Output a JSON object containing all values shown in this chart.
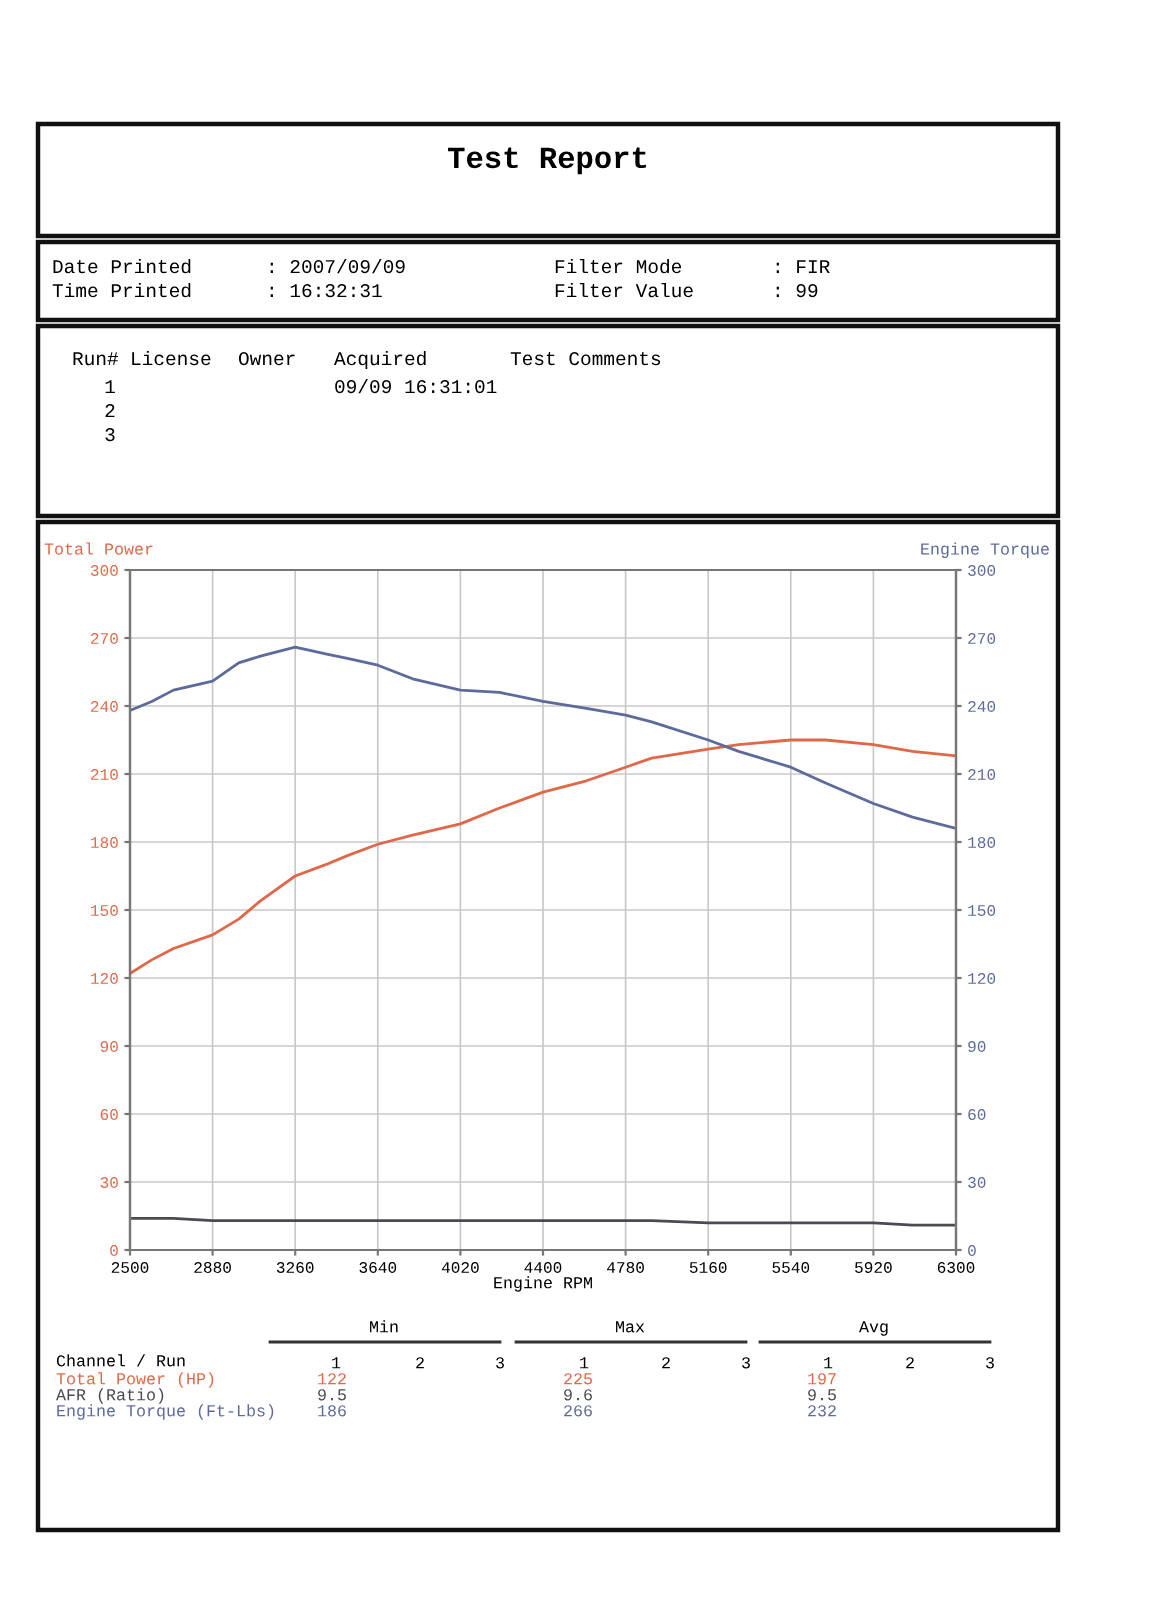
{
  "chart_data": {
    "type": "line",
    "title": "Test Report",
    "xlabel": "Engine RPM",
    "ylabel": "Total Power",
    "y2label": "Engine Torque",
    "x": [
      2500,
      2600,
      2700,
      2880,
      3000,
      3100,
      3260,
      3400,
      3500,
      3640,
      3800,
      4020,
      4200,
      4400,
      4600,
      4780,
      4900,
      5160,
      5300,
      5540,
      5700,
      5920,
      6100,
      6300
    ],
    "series": [
      {
        "color": "#e06848",
        "values": [
          122,
          128,
          133,
          139,
          146,
          154,
          165,
          170,
          174,
          179,
          183,
          188,
          195,
          202,
          207,
          213,
          217,
          221,
          223,
          225,
          225,
          223,
          220,
          218
        ]
      },
      {
        "color": "#5c6a9c",
        "axis": "y2",
        "values": [
          238,
          242,
          247,
          251,
          259,
          262,
          266,
          263,
          261,
          258,
          252,
          247,
          246,
          242,
          239,
          236,
          233,
          225,
          220,
          213,
          206,
          197,
          191,
          186
        ]
      },
      {
        "color": "#4a4a52",
        "values": [
          14,
          14,
          14,
          13,
          13,
          13,
          13,
          13,
          13,
          13,
          13,
          13,
          13,
          13,
          13,
          13,
          13,
          12,
          12,
          12,
          12,
          12,
          11,
          11
        ]
      }
    ],
    "xlim": [
      2500,
      6300
    ],
    "xticks": [
      2500,
      2880,
      3260,
      3640,
      4020,
      4400,
      4780,
      5160,
      5540,
      5920,
      6300
    ],
    "ylim": [
      0,
      300
    ],
    "yticks": [
      0,
      30,
      60,
      90,
      120,
      150,
      180,
      210,
      240,
      270,
      300
    ],
    "y2lim": [
      0,
      300
    ],
    "y2ticks": [
      0,
      30,
      60,
      90,
      120,
      150,
      180,
      210,
      240,
      270,
      300
    ],
    "grid": true,
    "line_style": "solid",
    "marker": "none",
    "annotations": [
      "Date Printed",
      ": 2007/09/09",
      "Time Printed",
      ": 16:32:31",
      "Filter Mode",
      ": FIR",
      "Filter Value",
      ": 99",
      "Run#",
      "License",
      "Owner",
      "Acquired",
      "Test Comments",
      "1",
      "2",
      "3",
      "09/09 16:31:01",
      "Min",
      "Max",
      "Avg",
      "Channel / Run",
      "1",
      "2",
      "3",
      "1",
      "2",
      "3",
      "1",
      "2",
      "3",
      "Total Power (HP)",
      "AFR (Ratio)",
      "Engine Torque (Ft-Lbs)",
      "122",
      "9.5",
      "186",
      "225",
      "9.6",
      "266",
      "197",
      "9.5",
      "232"
    ]
  }
}
